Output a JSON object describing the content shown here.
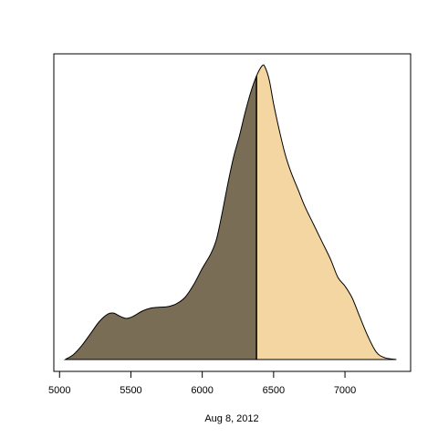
{
  "chart_data": {
    "type": "area",
    "xlabel": "Aug 8, 2012",
    "xlim": [
      4960,
      7460
    ],
    "x_ticks": [
      5000,
      5500,
      6000,
      6500,
      7000
    ],
    "x_tick_labels": [
      "5000",
      "5500",
      "6000",
      "6500",
      "7000"
    ],
    "y_axis_shown": false,
    "grid": false,
    "split_x": 6380,
    "colors": {
      "left_fill": "#7a6d55",
      "right_fill": "#f3d6a2",
      "outline": "#000000"
    },
    "density_points": [
      [
        5040,
        0.0
      ],
      [
        5100,
        0.018
      ],
      [
        5160,
        0.05
      ],
      [
        5220,
        0.09
      ],
      [
        5280,
        0.13
      ],
      [
        5340,
        0.155
      ],
      [
        5380,
        0.158
      ],
      [
        5420,
        0.148
      ],
      [
        5470,
        0.14
      ],
      [
        5520,
        0.148
      ],
      [
        5580,
        0.165
      ],
      [
        5640,
        0.175
      ],
      [
        5700,
        0.178
      ],
      [
        5760,
        0.18
      ],
      [
        5820,
        0.19
      ],
      [
        5880,
        0.212
      ],
      [
        5940,
        0.255
      ],
      [
        6000,
        0.31
      ],
      [
        6060,
        0.36
      ],
      [
        6100,
        0.41
      ],
      [
        6140,
        0.5
      ],
      [
        6180,
        0.6
      ],
      [
        6220,
        0.69
      ],
      [
        6260,
        0.76
      ],
      [
        6300,
        0.84
      ],
      [
        6340,
        0.91
      ],
      [
        6380,
        0.965
      ],
      [
        6420,
        1.0
      ],
      [
        6440,
        0.995
      ],
      [
        6470,
        0.95
      ],
      [
        6500,
        0.87
      ],
      [
        6540,
        0.78
      ],
      [
        6580,
        0.7
      ],
      [
        6620,
        0.64
      ],
      [
        6670,
        0.58
      ],
      [
        6720,
        0.52
      ],
      [
        6780,
        0.46
      ],
      [
        6840,
        0.4
      ],
      [
        6900,
        0.34
      ],
      [
        6950,
        0.28
      ],
      [
        7000,
        0.25
      ],
      [
        7050,
        0.21
      ],
      [
        7100,
        0.15
      ],
      [
        7160,
        0.08
      ],
      [
        7220,
        0.025
      ],
      [
        7280,
        0.006
      ],
      [
        7360,
        0.0
      ]
    ]
  }
}
